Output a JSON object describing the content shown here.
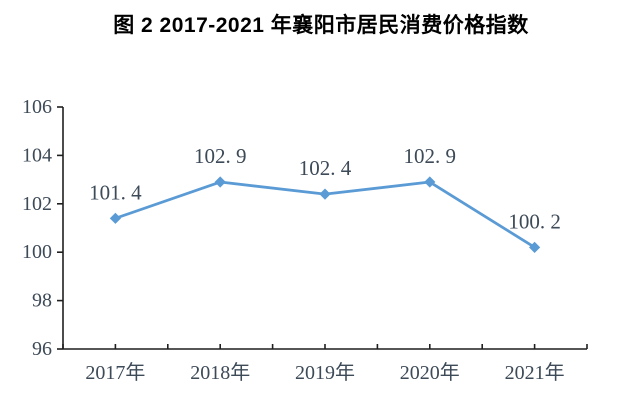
{
  "title": "图 2  2017-2021 年襄阳市居民消费价格指数",
  "chart_data": {
    "type": "line",
    "title": "图 2  2017-2021 年襄阳市居民消费价格指数",
    "categories": [
      "2017年",
      "2018年",
      "2019年",
      "2020年",
      "2021年"
    ],
    "values": [
      101.4,
      102.9,
      102.4,
      102.9,
      100.2
    ],
    "data_labels": [
      "101. 4",
      "102. 9",
      "102. 4",
      "102. 9",
      "100. 2"
    ],
    "yticks": [
      96,
      98,
      100,
      102,
      104,
      106
    ],
    "ylim": [
      96,
      106
    ],
    "xlabel": "",
    "ylabel": "",
    "grid": false,
    "legend": false,
    "marker": "diamond",
    "colors": {
      "line": "#5B9BD5",
      "marker": "#5B9BD5",
      "axis": "#1f1f1f",
      "tick_label": "#3d4a57",
      "data_label": "#3d4a57",
      "title": "#000000"
    }
  }
}
